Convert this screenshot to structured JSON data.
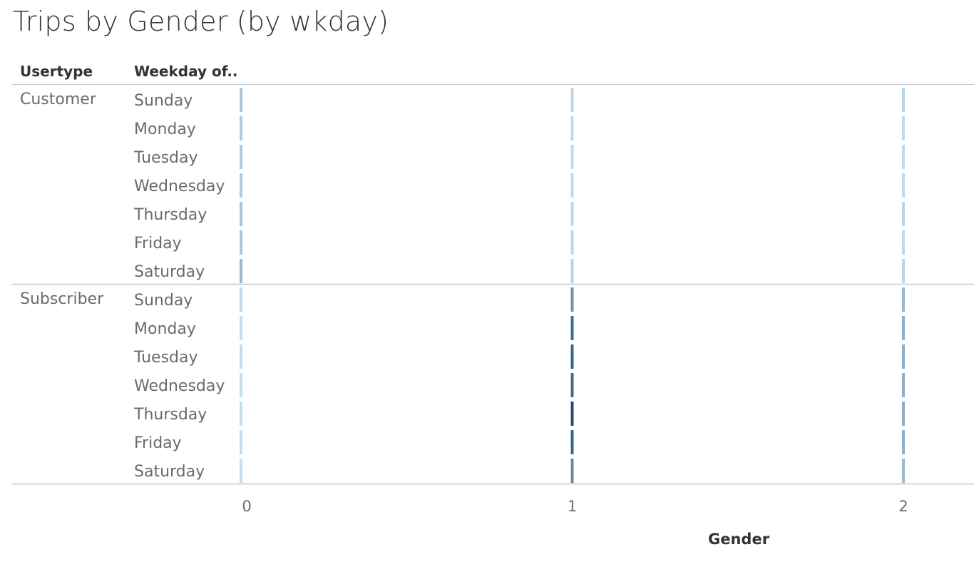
{
  "title": "Trips by Gender (by wkday)",
  "headers": {
    "usertype": "Usertype",
    "weekday": "Weekday of.."
  },
  "chart_data": {
    "type": "heatmap",
    "title": "Trips by Gender (by wkday)",
    "xlabel": "Gender",
    "x_ticks": [
      "0",
      "1",
      "2"
    ],
    "x": [
      0,
      1,
      2
    ],
    "row_groups": [
      "Customer",
      "Subscriber"
    ],
    "categories": [
      "Sunday",
      "Monday",
      "Tuesday",
      "Wednesday",
      "Thursday",
      "Friday",
      "Saturday"
    ],
    "intensity_scale": [
      0,
      1
    ],
    "series": [
      {
        "group": "Customer",
        "x": 0,
        "values": [
          0.2,
          0.18,
          0.18,
          0.18,
          0.22,
          0.2,
          0.3
        ]
      },
      {
        "group": "Customer",
        "x": 1,
        "values": [
          0.1,
          0.08,
          0.08,
          0.08,
          0.1,
          0.1,
          0.12
        ]
      },
      {
        "group": "Customer",
        "x": 2,
        "values": [
          0.1,
          0.08,
          0.08,
          0.08,
          0.1,
          0.08,
          0.1
        ]
      },
      {
        "group": "Subscriber",
        "x": 0,
        "values": [
          0.08,
          0.05,
          0.05,
          0.05,
          0.05,
          0.05,
          0.05
        ]
      },
      {
        "group": "Subscriber",
        "x": 1,
        "values": [
          0.55,
          0.8,
          0.85,
          0.8,
          1.0,
          0.85,
          0.6
        ]
      },
      {
        "group": "Subscriber",
        "x": 2,
        "values": [
          0.3,
          0.35,
          0.35,
          0.35,
          0.35,
          0.35,
          0.28
        ]
      }
    ],
    "colors": {
      "light": "#cfe5f2",
      "dark": "#1f4e7d"
    },
    "grid": false
  }
}
